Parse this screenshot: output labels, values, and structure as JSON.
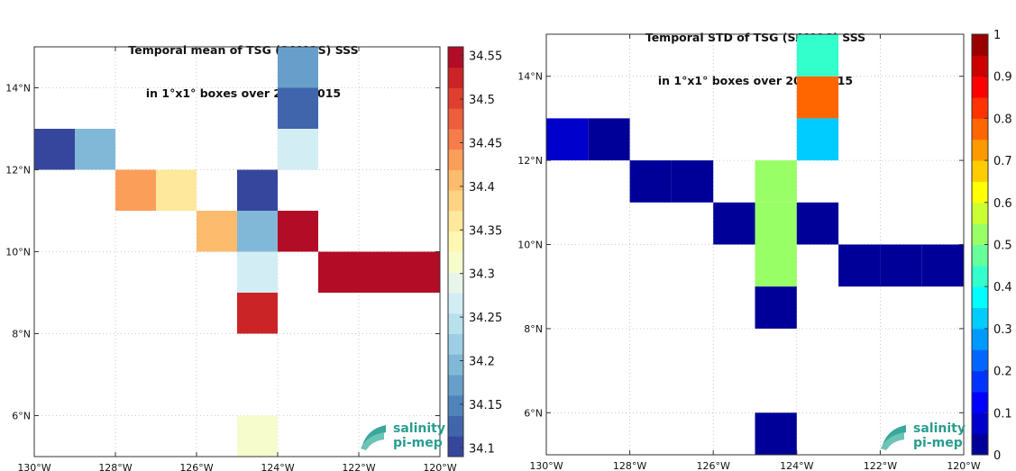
{
  "chart_data": [
    {
      "type": "heatmap",
      "title_line1": "Temporal mean of TSG (SAMOS) SSS",
      "title_line2": "in 1°x1° boxes over 2012-2015",
      "x_ticks": [
        "130°W",
        "128°W",
        "126°W",
        "124°W",
        "122°W",
        "120°W"
      ],
      "y_ticks": [
        "6°N",
        "8°N",
        "10°N",
        "12°N",
        "14°N"
      ],
      "xlim_lon": [
        -130,
        -120
      ],
      "ylim_lat": [
        5,
        15
      ],
      "grid": true,
      "colorbar": {
        "min": 34.09,
        "max": 34.56,
        "ticks": [
          "34.1",
          "34.15",
          "34.2",
          "34.25",
          "34.3",
          "34.35",
          "34.4",
          "34.45",
          "34.5",
          "34.55"
        ],
        "tick_values": [
          34.1,
          34.15,
          34.2,
          34.25,
          34.3,
          34.35,
          34.4,
          34.45,
          34.5,
          34.55
        ],
        "colormap": "RdYlBu_r"
      },
      "cells": [
        {
          "lon": -130,
          "lat": 12,
          "value": 34.11
        },
        {
          "lon": -129,
          "lat": 12,
          "value": 34.19
        },
        {
          "lon": -128,
          "lat": 11,
          "value": 34.44
        },
        {
          "lon": -127,
          "lat": 11,
          "value": 34.36
        },
        {
          "lon": -126,
          "lat": 10,
          "value": 34.41
        },
        {
          "lon": -125,
          "lat": 11,
          "value": 34.11
        },
        {
          "lon": -125,
          "lat": 10,
          "value": 34.19
        },
        {
          "lon": -125,
          "lat": 9,
          "value": 34.26
        },
        {
          "lon": -125,
          "lat": 8,
          "value": 34.53
        },
        {
          "lon": -125,
          "lat": 5,
          "value": 34.31
        },
        {
          "lon": -124,
          "lat": 10,
          "value": 34.55
        },
        {
          "lon": -124,
          "lat": 12,
          "value": 34.26
        },
        {
          "lon": -124,
          "lat": 13,
          "value": 34.12
        },
        {
          "lon": -124,
          "lat": 14,
          "value": 34.18
        },
        {
          "lon": -123,
          "lat": 9,
          "value": 34.55
        },
        {
          "lon": -122,
          "lat": 9,
          "value": 34.55
        },
        {
          "lon": -121,
          "lat": 9,
          "value": 34.55
        }
      ]
    },
    {
      "type": "heatmap",
      "title_line1": "Temporal STD of TSG (SAMOS) SSS",
      "title_line2": "in 1°x1° boxes over 2012-2015",
      "x_ticks": [
        "130°W",
        "128°W",
        "126°W",
        "124°W",
        "122°W",
        "120°W"
      ],
      "y_ticks": [
        "6°N",
        "8°N",
        "10°N",
        "12°N",
        "14°N"
      ],
      "xlim_lon": [
        -130,
        -120
      ],
      "ylim_lat": [
        5,
        15
      ],
      "grid": true,
      "colorbar": {
        "min": 0,
        "max": 1,
        "ticks": [
          "0",
          "0.1",
          "0.2",
          "0.3",
          "0.4",
          "0.5",
          "0.6",
          "0.7",
          "0.8",
          "0.9",
          "1"
        ],
        "tick_values": [
          0,
          0.1,
          0.2,
          0.3,
          0.4,
          0.5,
          0.6,
          0.7,
          0.8,
          0.9,
          1
        ],
        "colormap": "jet"
      },
      "cells": [
        {
          "lon": -130,
          "lat": 12,
          "value": 0.07
        },
        {
          "lon": -129,
          "lat": 12,
          "value": 0.02
        },
        {
          "lon": -128,
          "lat": 11,
          "value": 0.02
        },
        {
          "lon": -127,
          "lat": 11,
          "value": 0.02
        },
        {
          "lon": -126,
          "lat": 10,
          "value": 0.02
        },
        {
          "lon": -125,
          "lat": 11,
          "value": 0.5
        },
        {
          "lon": -125,
          "lat": 10,
          "value": 0.5
        },
        {
          "lon": -125,
          "lat": 9,
          "value": 0.5
        },
        {
          "lon": -125,
          "lat": 8,
          "value": 0.02
        },
        {
          "lon": -125,
          "lat": 5,
          "value": 0.02
        },
        {
          "lon": -124,
          "lat": 10,
          "value": 0.02
        },
        {
          "lon": -124,
          "lat": 12,
          "value": 0.33
        },
        {
          "lon": -124,
          "lat": 13,
          "value": 0.77
        },
        {
          "lon": -124,
          "lat": 14,
          "value": 0.4
        },
        {
          "lon": -123,
          "lat": 9,
          "value": 0.02
        },
        {
          "lon": -122,
          "lat": 9,
          "value": 0.02
        },
        {
          "lon": -121,
          "lat": 9,
          "value": 0.02
        }
      ]
    }
  ],
  "logo": {
    "line1": "salinity",
    "line2": "pi-mep"
  }
}
